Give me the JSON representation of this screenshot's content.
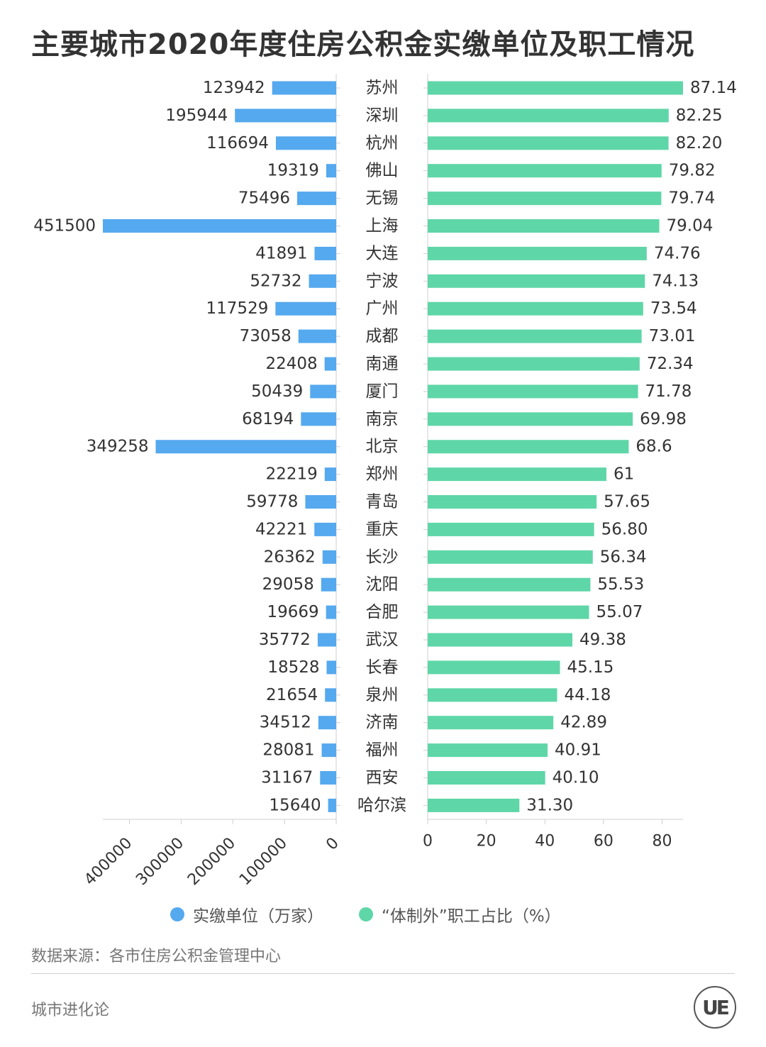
{
  "title": "主要城市2020年度住房公积金实缴单位及职工情况",
  "legend": {
    "left_label": "实缴单位（万家）",
    "right_label": "“体制外”职工占比（%）"
  },
  "source": "数据来源：各市住房公积金管理中心",
  "brand": "城市进化论",
  "logo_text": "UE",
  "colors": {
    "left": "#55a9ee",
    "right": "#5fd6a8",
    "text": "#333333",
    "axis": "#cfcfcf"
  },
  "chart_data": {
    "type": "bar",
    "orientation": "horizontal",
    "layout": "butterfly",
    "categories": [
      "苏州",
      "深圳",
      "杭州",
      "佛山",
      "无锡",
      "上海",
      "大连",
      "宁波",
      "广州",
      "成都",
      "南通",
      "厦门",
      "南京",
      "北京",
      "郑州",
      "青岛",
      "重庆",
      "长沙",
      "沈阳",
      "合肥",
      "武汉",
      "长春",
      "泉州",
      "济南",
      "福州",
      "西安",
      "哈尔滨"
    ],
    "series": [
      {
        "name": "实缴单位（万家）",
        "side": "left",
        "values": [
          123942,
          195944,
          116694,
          19319,
          75496,
          451500,
          41891,
          52732,
          117529,
          73058,
          22408,
          50439,
          68194,
          349258,
          22219,
          59778,
          42221,
          26362,
          29058,
          19669,
          35772,
          18528,
          21654,
          34512,
          28081,
          31167,
          15640
        ],
        "labels": [
          "123942",
          "195944",
          "116694",
          "19319",
          "75496",
          "451500",
          "41891",
          "52732",
          "117529",
          "73058",
          "22408",
          "50439",
          "68194",
          "349258",
          "22219",
          "59778",
          "42221",
          "26362",
          "29058",
          "19669",
          "35772",
          "18528",
          "21654",
          "34512",
          "28081",
          "31167",
          "15640"
        ],
        "axis_ticks": [
          "400000",
          "300000",
          "200000",
          "100000",
          "0"
        ],
        "xlim": [
          0,
          451500
        ]
      },
      {
        "name": "“体制外”职工占比（%）",
        "side": "right",
        "values": [
          87.14,
          82.25,
          82.2,
          79.82,
          79.74,
          79.04,
          74.76,
          74.13,
          73.54,
          73.01,
          72.34,
          71.78,
          69.98,
          68.6,
          61,
          57.65,
          56.8,
          56.34,
          55.53,
          55.07,
          49.38,
          45.15,
          44.18,
          42.89,
          40.91,
          40.1,
          31.3
        ],
        "labels": [
          "87.14",
          "82.25",
          "82.20",
          "79.82",
          "79.74",
          "79.04",
          "74.76",
          "74.13",
          "73.54",
          "73.01",
          "72.34",
          "71.78",
          "69.98",
          "68.6",
          "61",
          "57.65",
          "56.80",
          "56.34",
          "55.53",
          "55.07",
          "49.38",
          "45.15",
          "44.18",
          "42.89",
          "40.91",
          "40.10",
          "31.30"
        ],
        "axis_ticks": [
          "0",
          "20",
          "40",
          "60",
          "80"
        ],
        "xlim": [
          0,
          87.14
        ]
      }
    ]
  }
}
